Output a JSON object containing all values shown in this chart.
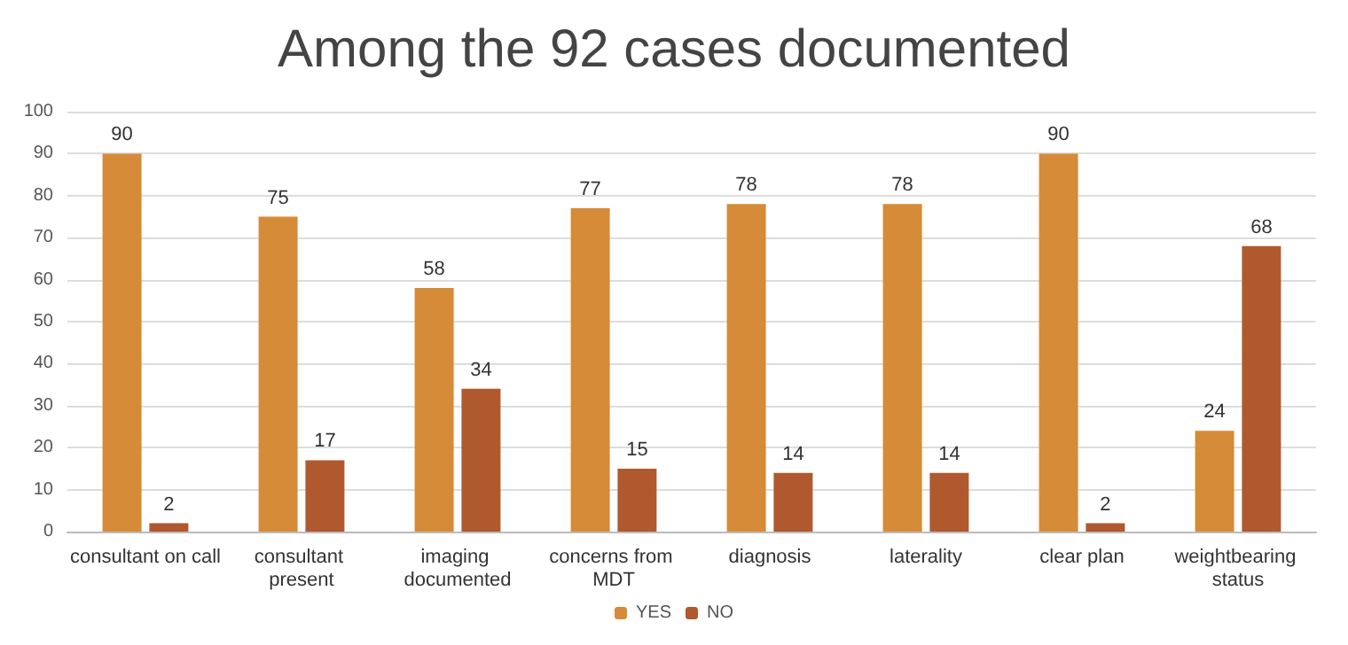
{
  "chart_data": {
    "type": "bar",
    "title": "Among the 92 cases documented",
    "categories": [
      "consultant on call",
      "consultant present",
      "imaging documented",
      "concerns from MDT",
      "diagnosis",
      "laterality",
      "clear plan",
      "weightbearing status"
    ],
    "series": [
      {
        "name": "YES",
        "color": "#d58b38",
        "values": [
          90,
          75,
          58,
          77,
          78,
          78,
          90,
          24
        ]
      },
      {
        "name": "NO",
        "color": "#b0592f",
        "values": [
          2,
          17,
          34,
          15,
          14,
          14,
          2,
          68
        ]
      }
    ],
    "ylim": [
      0,
      100
    ],
    "yticks": [
      0,
      10,
      20,
      30,
      40,
      50,
      60,
      70,
      80,
      90,
      100
    ],
    "grid": "y",
    "legend": "bottom",
    "data_labels": true
  }
}
